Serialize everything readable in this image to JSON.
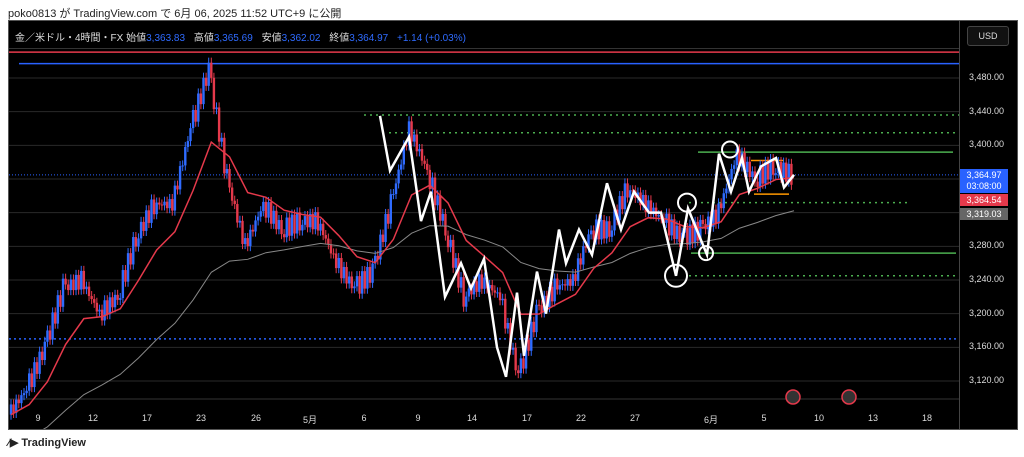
{
  "publish_line": "poko0813 が TradingView.com で 6月 06, 2025 11:52 UTC+9 に公開",
  "legend": {
    "symbol": "金／米ドル・4時間・FX",
    "open_label": "始値",
    "open": "3,363.83",
    "high_label": "高値",
    "high": "3,365.69",
    "low_label": "安値",
    "low": "3,362.02",
    "close_label": "終値",
    "close": "3,364.97",
    "change": "+1.14 (+0.03%)"
  },
  "currency": "USD",
  "price_labels": [
    "3,480.00",
    "3,440.00",
    "3,400.00",
    "3,280.00",
    "3,240.00",
    "3,200.00",
    "3,160.00",
    "3,120.00"
  ],
  "tags": {
    "price": "3,364.97",
    "countdown": "03:08:00",
    "ma_red": "3,364.54",
    "ma_gray": "3,319.03"
  },
  "time_labels": [
    "9",
    "12",
    "17",
    "23",
    "26",
    "5月",
    "6",
    "9",
    "14",
    "17",
    "22",
    "27",
    "6月",
    "5",
    "10",
    "13",
    "18"
  ],
  "footer_logo": "TradingView",
  "colors": {
    "up": "#2f6bff",
    "down": "#e5394b",
    "ma": "#e5394b",
    "ma_slow": "#888888",
    "line": "#ffffff",
    "green": "#4caf50",
    "orange": "#ff9800"
  },
  "chart_data": {
    "type": "line",
    "title": "金／米ドル・4時間・FX",
    "ylim": [
      3080,
      3520
    ],
    "price_path": [
      3080,
      3110,
      3160,
      3230,
      3240,
      3200,
      3220,
      3290,
      3330,
      3330,
      3420,
      3490,
      3360,
      3280,
      3330,
      3300,
      3310,
      3310,
      3260,
      3230,
      3250,
      3330,
      3420,
      3370,
      3300,
      3220,
      3240,
      3220,
      3125,
      3200,
      3230,
      3240,
      3300,
      3300,
      3350,
      3330,
      3310,
      3290,
      3300,
      3320,
      3390,
      3360,
      3375,
      3365
    ],
    "levels": {
      "red_resistance": 3500,
      "blue_resistance": 3490,
      "blue_support": 3170,
      "green_upper": 3392,
      "green_lower": 3272,
      "dotted": [
        3436,
        3415,
        3332,
        3245
      ]
    }
  }
}
